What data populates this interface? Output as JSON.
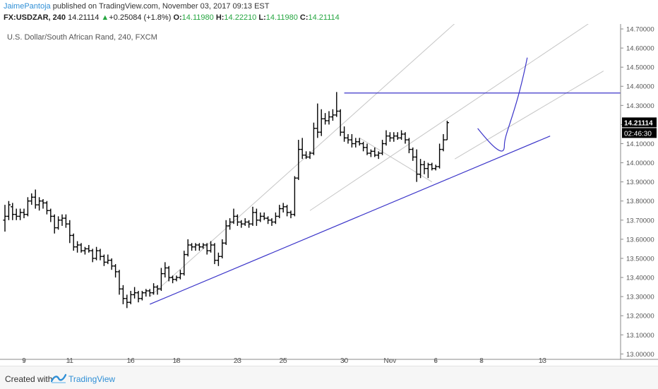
{
  "header": {
    "author": "JaimePantoja",
    "published_text": "published on TradingView.com, November 03, 2017 09:13 EST",
    "symbol": "FX:USDZAR, 240",
    "last": "14.21114",
    "change_arrow": "▲",
    "change": "+0.25084 (+1.8%)",
    "o_label": "O:",
    "o_value": "14.11980",
    "h_label": "H:",
    "h_value": "14.22210",
    "l_label": "L:",
    "l_value": "14.11980",
    "c_label": "C:",
    "c_value": "14.21114"
  },
  "chart_data": {
    "type": "ohlc",
    "title": "U.S. Dollar/South African Rand, 240, FXCM",
    "ylim": [
      13.0,
      14.75
    ],
    "y_ticks": [
      "14.70000",
      "14.60000",
      "14.50000",
      "14.40000",
      "14.30000",
      "14.20000",
      "14.10000",
      "14.00000",
      "13.90000",
      "13.80000",
      "13.70000",
      "13.60000",
      "13.50000",
      "13.40000",
      "13.30000",
      "13.20000",
      "13.10000",
      "13.00000"
    ],
    "x_tick_labels": [
      "9",
      "11",
      "16",
      "18",
      "23",
      "25",
      "30",
      "Nov",
      "6",
      "8",
      "13"
    ],
    "x_tick_bars": [
      5,
      17,
      33,
      45,
      61,
      73,
      89,
      101,
      113,
      125,
      141
    ],
    "price_label": "14.21114",
    "countdown_label": "02:46:30",
    "bar_step": 5.4,
    "bar_x0": 7,
    "ohlc": [
      [
        13.7,
        13.78,
        13.64,
        13.72
      ],
      [
        13.72,
        13.8,
        13.7,
        13.78
      ],
      [
        13.77,
        13.79,
        13.7,
        13.73
      ],
      [
        13.73,
        13.76,
        13.7,
        13.72
      ],
      [
        13.72,
        13.76,
        13.7,
        13.74
      ],
      [
        13.74,
        13.76,
        13.71,
        13.73
      ],
      [
        13.73,
        13.82,
        13.72,
        13.8
      ],
      [
        13.8,
        13.84,
        13.78,
        13.82
      ],
      [
        13.82,
        13.86,
        13.76,
        13.78
      ],
      [
        13.78,
        13.82,
        13.75,
        13.8
      ],
      [
        13.8,
        13.81,
        13.76,
        13.79
      ],
      [
        13.79,
        13.8,
        13.73,
        13.75
      ],
      [
        13.75,
        13.76,
        13.69,
        13.72
      ],
      [
        13.72,
        13.73,
        13.63,
        13.66
      ],
      [
        13.66,
        13.72,
        13.65,
        13.7
      ],
      [
        13.7,
        13.73,
        13.67,
        13.71
      ],
      [
        13.71,
        13.73,
        13.66,
        13.68
      ],
      [
        13.68,
        13.7,
        13.58,
        13.62
      ],
      [
        13.62,
        13.63,
        13.54,
        13.56
      ],
      [
        13.56,
        13.59,
        13.53,
        13.57
      ],
      [
        13.57,
        13.58,
        13.53,
        13.54
      ],
      [
        13.54,
        13.56,
        13.52,
        13.55
      ],
      [
        13.55,
        13.57,
        13.53,
        13.54
      ],
      [
        13.54,
        13.55,
        13.48,
        13.5
      ],
      [
        13.5,
        13.56,
        13.49,
        13.54
      ],
      [
        13.54,
        13.55,
        13.49,
        13.51
      ],
      [
        13.51,
        13.52,
        13.46,
        13.48
      ],
      [
        13.48,
        13.52,
        13.47,
        13.49
      ],
      [
        13.49,
        13.5,
        13.44,
        13.46
      ],
      [
        13.46,
        13.47,
        13.4,
        13.43
      ],
      [
        13.43,
        13.44,
        13.31,
        13.34
      ],
      [
        13.34,
        13.36,
        13.26,
        13.29
      ],
      [
        13.29,
        13.31,
        13.24,
        13.27
      ],
      [
        13.27,
        13.33,
        13.26,
        13.31
      ],
      [
        13.31,
        13.35,
        13.29,
        13.32
      ],
      [
        13.32,
        13.33,
        13.27,
        13.29
      ],
      [
        13.29,
        13.33,
        13.28,
        13.32
      ],
      [
        13.32,
        13.34,
        13.3,
        13.33
      ],
      [
        13.33,
        13.34,
        13.3,
        13.32
      ],
      [
        13.32,
        13.37,
        13.31,
        13.35
      ],
      [
        13.35,
        13.36,
        13.31,
        13.34
      ],
      [
        13.34,
        13.45,
        13.33,
        13.42
      ],
      [
        13.42,
        13.48,
        13.4,
        13.45
      ],
      [
        13.45,
        13.46,
        13.38,
        13.4
      ],
      [
        13.4,
        13.41,
        13.37,
        13.39
      ],
      [
        13.39,
        13.41,
        13.38,
        13.4
      ],
      [
        13.4,
        13.44,
        13.39,
        13.42
      ],
      [
        13.42,
        13.54,
        13.41,
        13.52
      ],
      [
        13.52,
        13.6,
        13.51,
        13.57
      ],
      [
        13.57,
        13.58,
        13.54,
        13.56
      ],
      [
        13.56,
        13.58,
        13.54,
        13.57
      ],
      [
        13.57,
        13.58,
        13.54,
        13.56
      ],
      [
        13.56,
        13.58,
        13.55,
        13.57
      ],
      [
        13.57,
        13.58,
        13.52,
        13.54
      ],
      [
        13.54,
        13.59,
        13.53,
        13.57
      ],
      [
        13.57,
        13.58,
        13.47,
        13.49
      ],
      [
        13.49,
        13.53,
        13.46,
        13.51
      ],
      [
        13.51,
        13.6,
        13.5,
        13.58
      ],
      [
        13.58,
        13.7,
        13.57,
        13.67
      ],
      [
        13.67,
        13.71,
        13.65,
        13.69
      ],
      [
        13.69,
        13.76,
        13.68,
        13.72
      ],
      [
        13.72,
        13.73,
        13.67,
        13.69
      ],
      [
        13.69,
        13.7,
        13.66,
        13.68
      ],
      [
        13.68,
        13.71,
        13.67,
        13.69
      ],
      [
        13.69,
        13.7,
        13.66,
        13.68
      ],
      [
        13.68,
        13.77,
        13.67,
        13.74
      ],
      [
        13.74,
        13.76,
        13.67,
        13.7
      ],
      [
        13.7,
        13.74,
        13.69,
        13.72
      ],
      [
        13.72,
        13.74,
        13.7,
        13.71
      ],
      [
        13.71,
        13.72,
        13.68,
        13.7
      ],
      [
        13.7,
        13.71,
        13.67,
        13.69
      ],
      [
        13.69,
        13.74,
        13.68,
        13.72
      ],
      [
        13.72,
        13.78,
        13.71,
        13.76
      ],
      [
        13.76,
        13.79,
        13.74,
        13.77
      ],
      [
        13.77,
        13.78,
        13.72,
        13.74
      ],
      [
        13.74,
        13.75,
        13.71,
        13.73
      ],
      [
        13.73,
        13.93,
        13.72,
        13.92
      ],
      [
        13.92,
        14.12,
        13.91,
        14.07
      ],
      [
        14.07,
        14.13,
        14.02,
        14.04
      ],
      [
        14.04,
        14.06,
        14.02,
        14.03
      ],
      [
        14.03,
        14.06,
        14.02,
        14.05
      ],
      [
        14.05,
        14.21,
        14.04,
        14.18
      ],
      [
        14.18,
        14.31,
        14.13,
        14.16
      ],
      [
        14.16,
        14.28,
        14.14,
        14.23
      ],
      [
        14.23,
        14.26,
        14.2,
        14.22
      ],
      [
        14.22,
        14.27,
        14.2,
        14.24
      ],
      [
        14.24,
        14.28,
        14.22,
        14.25
      ],
      [
        14.25,
        14.37,
        14.24,
        14.27
      ],
      [
        14.27,
        14.28,
        14.14,
        14.16
      ],
      [
        14.16,
        14.19,
        14.11,
        14.13
      ],
      [
        14.13,
        14.15,
        14.1,
        14.12
      ],
      [
        14.12,
        14.15,
        14.08,
        14.1
      ],
      [
        14.1,
        14.13,
        14.08,
        14.11
      ],
      [
        14.11,
        14.13,
        14.09,
        14.1
      ],
      [
        14.1,
        14.11,
        14.06,
        14.08
      ],
      [
        14.08,
        14.1,
        14.04,
        14.05
      ],
      [
        14.05,
        14.07,
        14.03,
        14.06
      ],
      [
        14.06,
        14.08,
        14.03,
        14.04
      ],
      [
        14.04,
        14.06,
        14.02,
        14.05
      ],
      [
        14.05,
        14.12,
        14.04,
        14.1
      ],
      [
        14.1,
        14.17,
        14.09,
        14.14
      ],
      [
        14.14,
        14.16,
        14.11,
        14.13
      ],
      [
        14.13,
        14.16,
        14.11,
        14.14
      ],
      [
        14.14,
        14.16,
        14.12,
        14.13
      ],
      [
        14.13,
        14.17,
        14.12,
        14.15
      ],
      [
        14.15,
        14.16,
        14.1,
        14.12
      ],
      [
        14.12,
        14.13,
        14.05,
        14.07
      ],
      [
        14.07,
        14.08,
        14.01,
        14.03
      ],
      [
        14.03,
        14.07,
        13.9,
        13.94
      ],
      [
        13.94,
        14.02,
        13.92,
        13.99
      ],
      [
        13.99,
        14.01,
        13.94,
        13.97
      ],
      [
        13.97,
        14.0,
        13.92,
        13.99
      ],
      [
        13.99,
        14.0,
        13.96,
        13.97
      ],
      [
        13.97,
        13.99,
        13.96,
        13.98
      ],
      [
        13.98,
        14.1,
        13.97,
        14.07
      ],
      [
        14.07,
        14.15,
        14.06,
        14.12
      ],
      [
        14.12,
        14.22,
        14.12,
        14.21
      ]
    ],
    "annotations": {
      "support_line": [
        [
          38,
          13.26
        ],
        [
          143,
          14.14
        ]
      ],
      "channel_lines": [
        [
          [
            38,
            13.3
          ],
          [
            122,
            14.8
          ]
        ],
        [
          [
            80,
            13.75
          ],
          [
            157,
            14.78
          ]
        ],
        [
          [
            118,
            14.02
          ],
          [
            157,
            14.48
          ]
        ]
      ],
      "horizontal_line": [
        [
          89,
          14.365
        ],
        [
          165,
          14.365
        ]
      ],
      "pivot_cross": [
        [
          93,
          14.13
        ],
        [
          112,
          13.9
        ]
      ],
      "projection_curve": [
        [
          124,
          14.18
        ],
        [
          128,
          14.08
        ],
        [
          131,
          14.09
        ],
        [
          134,
          14.25
        ],
        [
          137,
          14.55
        ]
      ]
    }
  },
  "footer": {
    "created_with": "Created with",
    "brand": "TradingView"
  },
  "colors": {
    "bars": "#000000",
    "trendline": "#3b35c9",
    "channel": "#c6c6c6",
    "axis_text": "#555555",
    "price_label_bg": "#000000",
    "brand_blue": "#2f8fd6"
  }
}
